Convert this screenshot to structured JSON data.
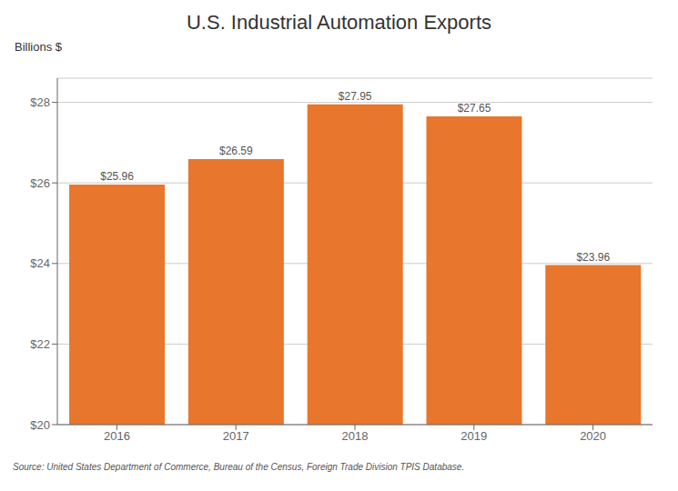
{
  "chart_data": {
    "type": "bar",
    "title": "U.S. Industrial Automation Exports",
    "ylabel": "Billions $",
    "annotations": [
      "Source: United States Department of Commerce, Bureau of the Census, Foreign Trade Division TPIS Database."
    ],
    "categories": [
      "2016",
      "2017",
      "2018",
      "2019",
      "2020"
    ],
    "values": [
      25.96,
      26.59,
      27.95,
      27.65,
      23.96
    ],
    "value_labels": [
      "$25.96",
      "$26.59",
      "$27.95",
      "$27.65",
      "$23.96"
    ],
    "data_labels": true,
    "color": "#E8762C",
    "ylim": [
      20,
      28.6
    ],
    "yticks": [
      {
        "value": 20,
        "label": "$20"
      },
      {
        "value": 22,
        "label": "$22"
      },
      {
        "value": 24,
        "label": "$24"
      },
      {
        "value": 26,
        "label": "$26"
      },
      {
        "value": 28,
        "label": "$28"
      }
    ],
    "grid": true
  }
}
